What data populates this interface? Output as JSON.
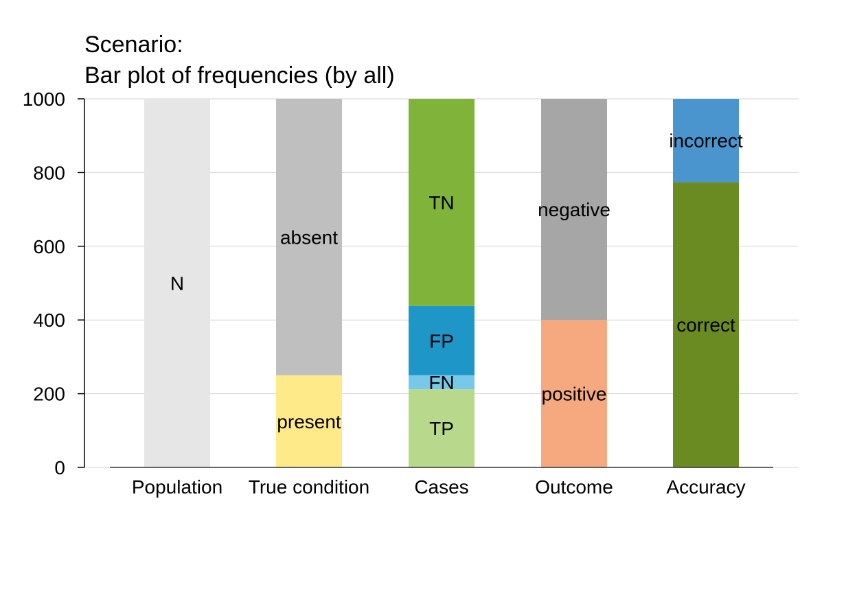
{
  "title": "Scenario:",
  "subtitle": "Bar plot of frequencies (by all)",
  "chart_data": {
    "type": "bar",
    "stacked": true,
    "title": "Scenario:",
    "subtitle": "Bar plot of frequencies (by all)",
    "xlabel": "",
    "ylabel": "",
    "ylim": [
      0,
      1000
    ],
    "yticks": [
      0,
      200,
      400,
      600,
      800,
      1000
    ],
    "grid": true,
    "categories": [
      "Population",
      "True condition",
      "Cases",
      "Outcome",
      "Accuracy"
    ],
    "bars": [
      {
        "category": "Population",
        "segments": [
          {
            "label": "N",
            "value": 1000,
            "color": "#e6e6e6"
          }
        ]
      },
      {
        "category": "True condition",
        "segments": [
          {
            "label": "present",
            "value": 250,
            "color": "#ffea8a"
          },
          {
            "label": "absent",
            "value": 750,
            "color": "#bfbfbf"
          }
        ]
      },
      {
        "category": "Cases",
        "segments": [
          {
            "label": "TP",
            "value": 212,
            "color": "#b8d98b"
          },
          {
            "label": "FN",
            "value": 38,
            "color": "#78c8ea"
          },
          {
            "label": "FP",
            "value": 188,
            "color": "#1f96c8"
          },
          {
            "label": "TN",
            "value": 562,
            "color": "#80b33a"
          }
        ]
      },
      {
        "category": "Outcome",
        "segments": [
          {
            "label": "positive",
            "value": 400,
            "color": "#f6a97e"
          },
          {
            "label": "negative",
            "value": 600,
            "color": "#a6a6a6"
          }
        ]
      },
      {
        "category": "Accuracy",
        "segments": [
          {
            "label": "correct",
            "value": 774,
            "color": "#6a8b22"
          },
          {
            "label": "incorrect",
            "value": 226,
            "color": "#4a95cd"
          }
        ]
      }
    ]
  }
}
